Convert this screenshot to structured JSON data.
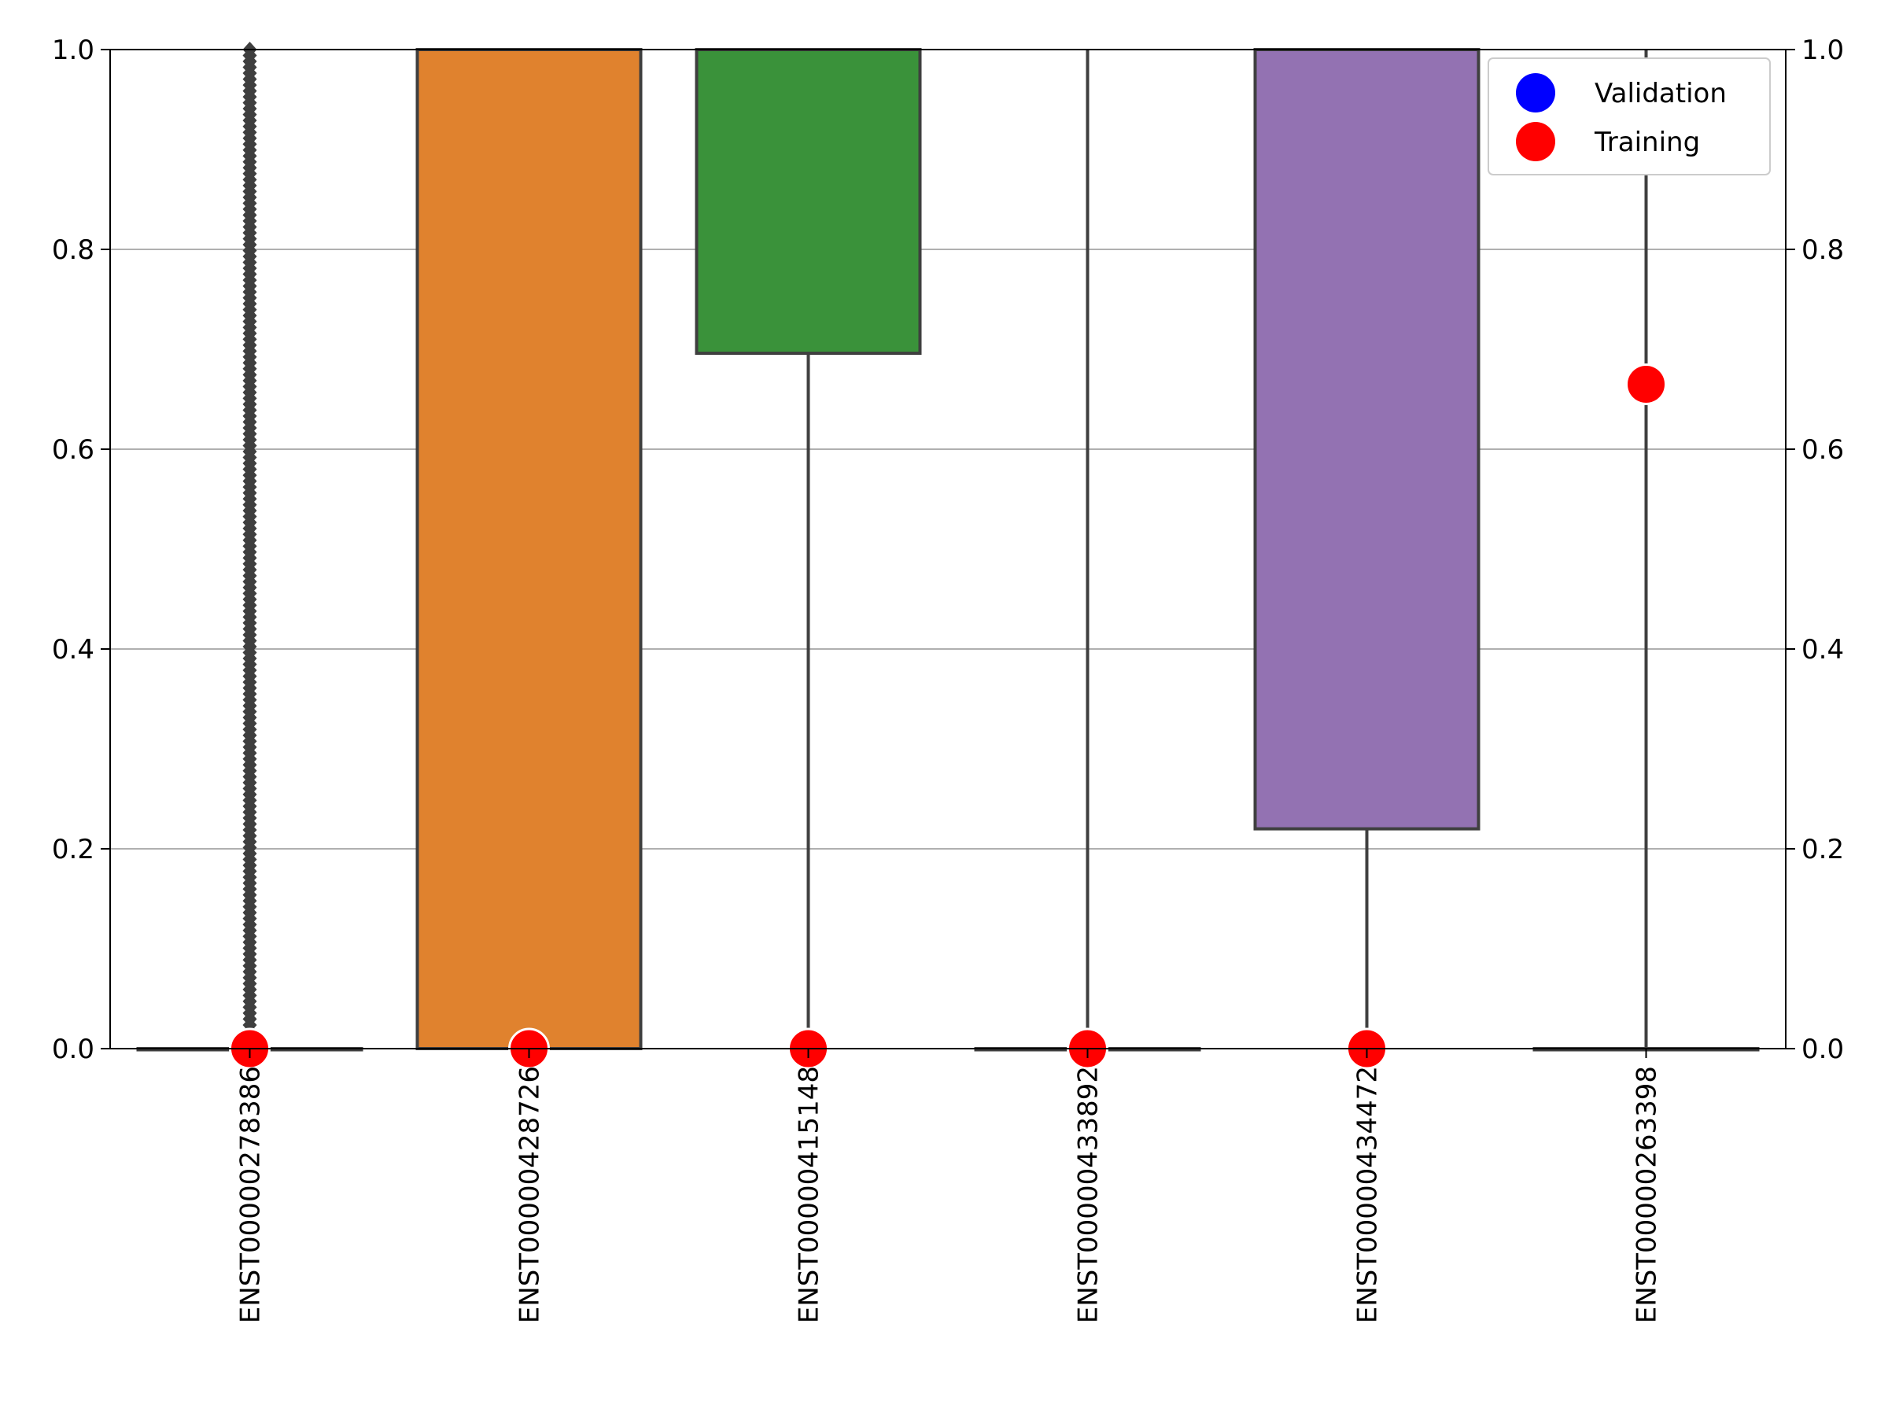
{
  "chart_data": {
    "type": "box",
    "categories": [
      "ENST00000278386",
      "ENST00000428726",
      "ENST00000415148",
      "ENST00000433892",
      "ENST00000434472",
      "ENST00000263398"
    ],
    "ylim": [
      0,
      1
    ],
    "yticks": [
      "0.0",
      "0.2",
      "0.4",
      "0.6",
      "0.8",
      "1.0"
    ],
    "grid": "y",
    "legend_position": "top-right",
    "boxes": [
      {
        "q1": 0.0,
        "median": 0.0,
        "q3": 0.0,
        "whisker_low": 0.0,
        "whisker_high": 0.0,
        "color": "#1f77b4"
      },
      {
        "q1": 0.0,
        "median": 0.0,
        "q3": 1.0,
        "whisker_low": 0.0,
        "whisker_high": 1.0,
        "color": "#e0822e"
      },
      {
        "q1": 0.696,
        "median": 1.0,
        "q3": 1.0,
        "whisker_low": 0.0,
        "whisker_high": 1.0,
        "color": "#3a923a"
      },
      {
        "q1": 0.0,
        "median": 0.0,
        "q3": 0.0,
        "whisker_low": 0.0,
        "whisker_high": 1.0,
        "color": "#c03d3e"
      },
      {
        "q1": 0.22,
        "median": 1.0,
        "q3": 1.0,
        "whisker_low": 0.0,
        "whisker_high": 1.0,
        "color": "#9372b2"
      },
      {
        "q1": 0.0,
        "median": 0.0,
        "q3": 0.0,
        "whisker_low": 0.0,
        "whisker_high": 1.0,
        "color": "#845b53"
      }
    ],
    "outliers": [
      {
        "category_index": 0,
        "range": [
          0.0,
          1.0
        ],
        "count": 170
      }
    ],
    "series": [
      {
        "name": "Validation",
        "color": "#0000ff",
        "values": [
          null,
          null,
          null,
          null,
          null,
          null
        ]
      },
      {
        "name": "Training",
        "color": "#ff0000",
        "values": [
          0.0,
          0.0,
          0.0,
          0.0,
          0.0,
          0.665
        ]
      }
    ],
    "colors": {
      "box_edge": "#3f3f3f",
      "grid": "#b0b0b0",
      "axis": "#000000"
    }
  }
}
